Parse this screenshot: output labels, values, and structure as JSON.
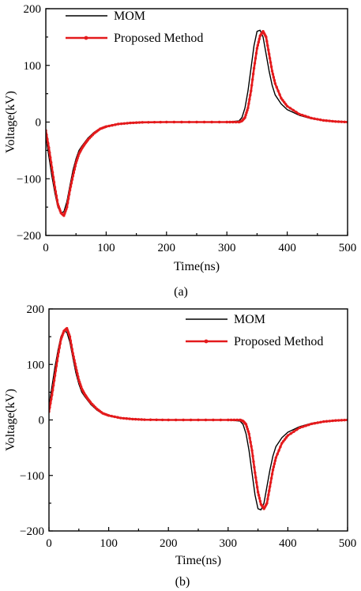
{
  "chart_data": [
    {
      "type": "line",
      "caption": "(a)",
      "xlabel": "Time(ns)",
      "ylabel": "Voltage(kV)",
      "xlim": [
        0,
        500
      ],
      "ylim": [
        -200,
        200
      ],
      "xticks": [
        0,
        100,
        200,
        300,
        400,
        500
      ],
      "yticks": [
        -200,
        -100,
        0,
        100,
        200
      ],
      "legend_position": "top-left",
      "series": [
        {
          "name": "MOM",
          "color": "#000000",
          "marker": "none",
          "x": [
            0,
            5,
            10,
            15,
            20,
            25,
            30,
            35,
            40,
            45,
            50,
            55,
            60,
            65,
            70,
            80,
            90,
            100,
            120,
            140,
            160,
            200,
            250,
            300,
            320,
            325,
            330,
            335,
            340,
            345,
            350,
            355,
            360,
            365,
            370,
            375,
            380,
            390,
            400,
            420,
            440,
            460,
            480,
            500
          ],
          "y": [
            -25,
            -60,
            -95,
            -125,
            -150,
            -160,
            -158,
            -140,
            -112,
            -85,
            -65,
            -50,
            -42,
            -35,
            -28,
            -18,
            -11,
            -7,
            -3,
            -1.5,
            -0.5,
            0,
            0,
            0,
            2,
            8,
            25,
            55,
            95,
            135,
            160,
            162,
            150,
            120,
            90,
            65,
            48,
            32,
            22,
            12,
            6,
            3,
            1,
            0
          ]
        },
        {
          "name": "Proposed Method",
          "color": "#e41a1c",
          "marker": "dot",
          "x": [
            0,
            5,
            10,
            15,
            20,
            25,
            30,
            35,
            40,
            45,
            50,
            55,
            60,
            65,
            70,
            80,
            90,
            100,
            120,
            140,
            160,
            200,
            250,
            300,
            320,
            325,
            330,
            335,
            340,
            345,
            350,
            355,
            360,
            365,
            370,
            375,
            380,
            390,
            400,
            420,
            440,
            460,
            480,
            500
          ],
          "y": [
            -15,
            -45,
            -80,
            -115,
            -145,
            -160,
            -165,
            -150,
            -120,
            -95,
            -72,
            -56,
            -46,
            -38,
            -31,
            -20,
            -12,
            -8,
            -3.5,
            -1.5,
            -0.5,
            0,
            0,
            0,
            0,
            2,
            8,
            25,
            55,
            95,
            130,
            152,
            160,
            150,
            120,
            90,
            68,
            42,
            28,
            14,
            7,
            3,
            1,
            0
          ]
        }
      ]
    },
    {
      "type": "line",
      "caption": "(b)",
      "xlabel": "Time(ns)",
      "ylabel": "Voltage(kV)",
      "xlim": [
        0,
        500
      ],
      "ylim": [
        -200,
        200
      ],
      "xticks": [
        0,
        100,
        200,
        300,
        400,
        500
      ],
      "yticks": [
        -200,
        -100,
        0,
        100,
        200
      ],
      "legend_position": "top-right",
      "series": [
        {
          "name": "MOM",
          "color": "#000000",
          "marker": "none",
          "x": [
            0,
            5,
            10,
            15,
            20,
            25,
            30,
            35,
            40,
            45,
            50,
            55,
            60,
            65,
            70,
            80,
            90,
            100,
            120,
            140,
            160,
            200,
            250,
            300,
            320,
            325,
            330,
            335,
            340,
            345,
            350,
            355,
            360,
            365,
            370,
            375,
            380,
            390,
            400,
            420,
            440,
            460,
            480,
            500
          ],
          "y": [
            25,
            60,
            95,
            125,
            150,
            160,
            158,
            140,
            112,
            85,
            65,
            50,
            42,
            35,
            28,
            18,
            11,
            7,
            3,
            1.5,
            0.5,
            0,
            0,
            0,
            -2,
            -8,
            -25,
            -55,
            -95,
            -135,
            -160,
            -162,
            -150,
            -120,
            -90,
            -65,
            -48,
            -32,
            -22,
            -12,
            -6,
            -3,
            -1,
            0
          ]
        },
        {
          "name": "Proposed Method",
          "color": "#e41a1c",
          "marker": "dot",
          "x": [
            0,
            5,
            10,
            15,
            20,
            25,
            30,
            35,
            40,
            45,
            50,
            55,
            60,
            65,
            70,
            80,
            90,
            100,
            120,
            140,
            160,
            200,
            250,
            300,
            320,
            325,
            330,
            335,
            340,
            345,
            350,
            355,
            360,
            365,
            370,
            375,
            380,
            390,
            400,
            420,
            440,
            460,
            480,
            500
          ],
          "y": [
            15,
            45,
            80,
            115,
            145,
            160,
            165,
            150,
            120,
            95,
            72,
            56,
            46,
            38,
            31,
            20,
            12,
            8,
            3.5,
            1.5,
            0.5,
            0,
            0,
            0,
            0,
            -2,
            -8,
            -25,
            -55,
            -95,
            -130,
            -152,
            -160,
            -150,
            -120,
            -90,
            -68,
            -42,
            -28,
            -14,
            -7,
            -3,
            -1,
            0
          ]
        }
      ]
    }
  ]
}
